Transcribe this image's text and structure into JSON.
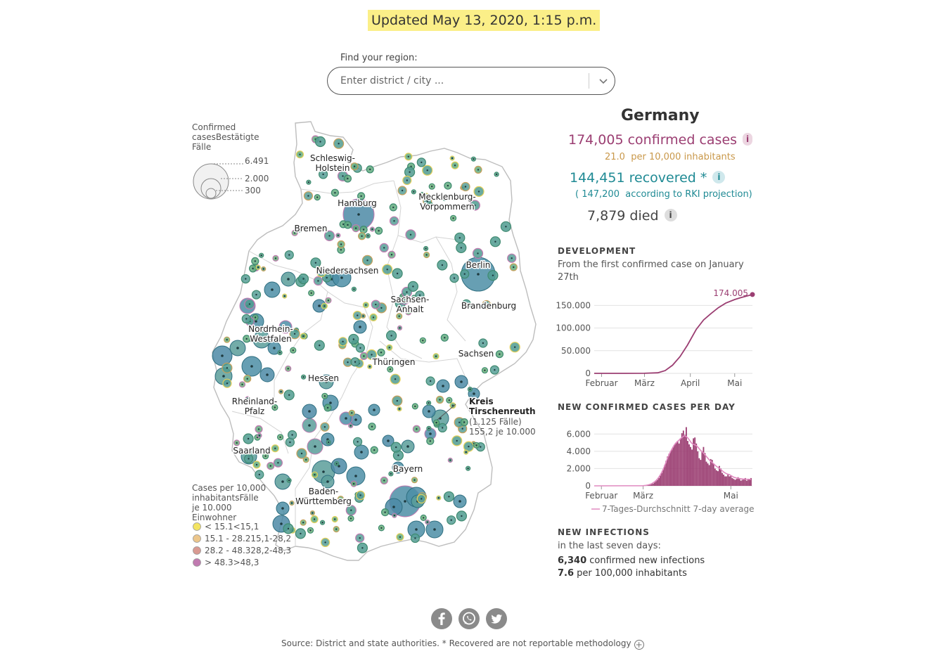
{
  "header": {
    "updated": "Updated May 13, 2020, 1:15 p.m."
  },
  "search": {
    "label": "Find your region:",
    "placeholder": "Enter district / city ..."
  },
  "map": {
    "size_legend": {
      "title_lines": [
        "Confirmed",
        "casesBestätigte",
        "Fälle"
      ],
      "values": [
        "6.491",
        "2.000",
        "300"
      ]
    },
    "color_legend": {
      "title_lines": [
        "Cases per 10,000",
        "inhabitantsFälle",
        "je 10.000",
        "Einwohner"
      ],
      "items": [
        {
          "label": "< 15.1<15,1",
          "color": "#f3e462"
        },
        {
          "label": "15.1 - 28.215,1-28,2",
          "color": "#ecc68b"
        },
        {
          "label": "28.2 - 48.328,2-48,3",
          "color": "#d99a92"
        },
        {
          "label": "> 48.3>48,3",
          "color": "#c07ab0"
        }
      ]
    },
    "states": [
      {
        "id": "sh",
        "lines": [
          "Schleswig-",
          "Holstein"
        ]
      },
      {
        "id": "mv",
        "lines": [
          "Mecklenburg-",
          "Vorpommern"
        ]
      },
      {
        "id": "hh",
        "lines": [
          "Hamburg"
        ]
      },
      {
        "id": "hb",
        "lines": [
          "Bremen"
        ]
      },
      {
        "id": "ni",
        "lines": [
          "Niedersachsen"
        ]
      },
      {
        "id": "be",
        "lines": [
          "Berlin"
        ]
      },
      {
        "id": "st",
        "lines": [
          "Sachsen-",
          "Anhalt"
        ]
      },
      {
        "id": "bb",
        "lines": [
          "Brandenburg"
        ]
      },
      {
        "id": "nw",
        "lines": [
          "Nordrhein-",
          "Westfalen"
        ]
      },
      {
        "id": "sn",
        "lines": [
          "Sachsen"
        ]
      },
      {
        "id": "th",
        "lines": [
          "Thüringen"
        ]
      },
      {
        "id": "he",
        "lines": [
          "Hessen"
        ]
      },
      {
        "id": "rp",
        "lines": [
          "Rheinland-",
          "Pfalz"
        ]
      },
      {
        "id": "sl",
        "lines": [
          "Saarland"
        ]
      },
      {
        "id": "by",
        "lines": [
          "Bayern"
        ]
      },
      {
        "id": "bw",
        "lines": [
          "Baden-",
          "Württemberg"
        ]
      }
    ],
    "annotation": {
      "title_lines": [
        "Kreis",
        "Tirschenreuth"
      ],
      "detail_lines": [
        "(1.125 Fälle)",
        "155,2 je 10.000"
      ]
    }
  },
  "summary": {
    "country": "Germany",
    "confirmed": "174,005 confirmed cases",
    "per10k_value": "21.0",
    "per10k_label": "per 10,000 inhabitants",
    "recovered": "144,451 recovered *",
    "rki_value": "( 147,200",
    "rki_label": "according to RKI projection)",
    "died": "7,879 died",
    "info_glyph": "i"
  },
  "development": {
    "heading": "DEVELOPMENT",
    "subtitle": "From the first confirmed case on January 27th",
    "end_label": "174.005"
  },
  "new_cases": {
    "heading": "NEW CONFIRMED CASES PER DAY",
    "avg_label": "7-Tages-Durchschnitt 7-day average"
  },
  "new_infections": {
    "heading": "NEW INFECTIONS",
    "subtitle": "in the last seven days:",
    "count": "6,340",
    "count_label": "confirmed new infections",
    "rate": "7.6",
    "rate_label": "per 100,000 inhabitants"
  },
  "footer": {
    "source": "Source: District and state authorities. * Recovered are not reportable methodology",
    "plus": "+"
  },
  "chart_data": [
    {
      "type": "line",
      "title": "DEVELOPMENT",
      "x_ticks": [
        "Februar",
        "März",
        "April",
        "Mai"
      ],
      "y_ticks": [
        "0",
        "50.000",
        "100.000",
        "150.000"
      ],
      "ylim": [
        0,
        180000
      ],
      "x": [
        "2020-01-27",
        "2020-02-15",
        "2020-03-01",
        "2020-03-10",
        "2020-03-15",
        "2020-03-20",
        "2020-03-25",
        "2020-03-30",
        "2020-04-05",
        "2020-04-10",
        "2020-04-15",
        "2020-04-20",
        "2020-04-25",
        "2020-05-01",
        "2020-05-05",
        "2020-05-13"
      ],
      "series": [
        {
          "values": [
            0,
            16,
            130,
            1200,
            6000,
            18000,
            37000,
            62000,
            97000,
            118000,
            132000,
            145000,
            155000,
            163000,
            167000,
            174005
          ]
        }
      ],
      "end_label": "174.005"
    },
    {
      "type": "bar",
      "title": "NEW CONFIRMED CASES PER DAY",
      "x_ticks": [
        "Februar",
        "März",
        "Mai"
      ],
      "y_ticks": [
        "0",
        "2.000",
        "4.000",
        "6.000"
      ],
      "ylim": [
        0,
        7000
      ],
      "start_date": "2020-03-01",
      "values": [
        10,
        20,
        40,
        50,
        80,
        130,
        200,
        270,
        400,
        550,
        700,
        900,
        1200,
        1500,
        1900,
        2400,
        2900,
        3400,
        3700,
        4000,
        4200,
        4500,
        4800,
        5000,
        5200,
        4900,
        5500,
        6100,
        6400,
        5900,
        6800,
        5200,
        4800,
        4500,
        4200,
        5500,
        5600,
        4900,
        4000,
        3200,
        3000,
        4000,
        4500,
        3800,
        2800,
        2600,
        2400,
        3100,
        3000,
        2600,
        2000,
        1800,
        1700,
        2300,
        2000,
        1500,
        1300,
        1100,
        1100,
        1300,
        1100,
        1200,
        900,
        800,
        700,
        800,
        1000,
        800,
        600,
        700,
        800,
        900,
        600,
        700,
        800,
        900
      ],
      "series": [
        {
          "name": "7-Tages-Durchschnitt 7-day average",
          "values": [
            20,
            40,
            60,
            90,
            130,
            190,
            260,
            360,
            480,
            620,
            800,
            1020,
            1280,
            1580,
            1930,
            2330,
            2760,
            3200,
            3600,
            3950,
            4250,
            4550,
            4800,
            5000,
            5150,
            5300,
            5450,
            5600,
            5750,
            5800,
            5700,
            5550,
            5350,
            5100,
            4900,
            4800,
            4750,
            4650,
            4500,
            4300,
            4100,
            3950,
            3800,
            3600,
            3400,
            3200,
            3000,
            2850,
            2700,
            2550,
            2400,
            2250,
            2150,
            2050,
            1900,
            1750,
            1600,
            1500,
            1400,
            1350,
            1300,
            1200,
            1100,
            1000,
            950,
            900,
            880,
            850,
            820,
            800,
            780,
            770,
            760,
            760,
            760,
            760
          ]
        }
      ]
    }
  ]
}
